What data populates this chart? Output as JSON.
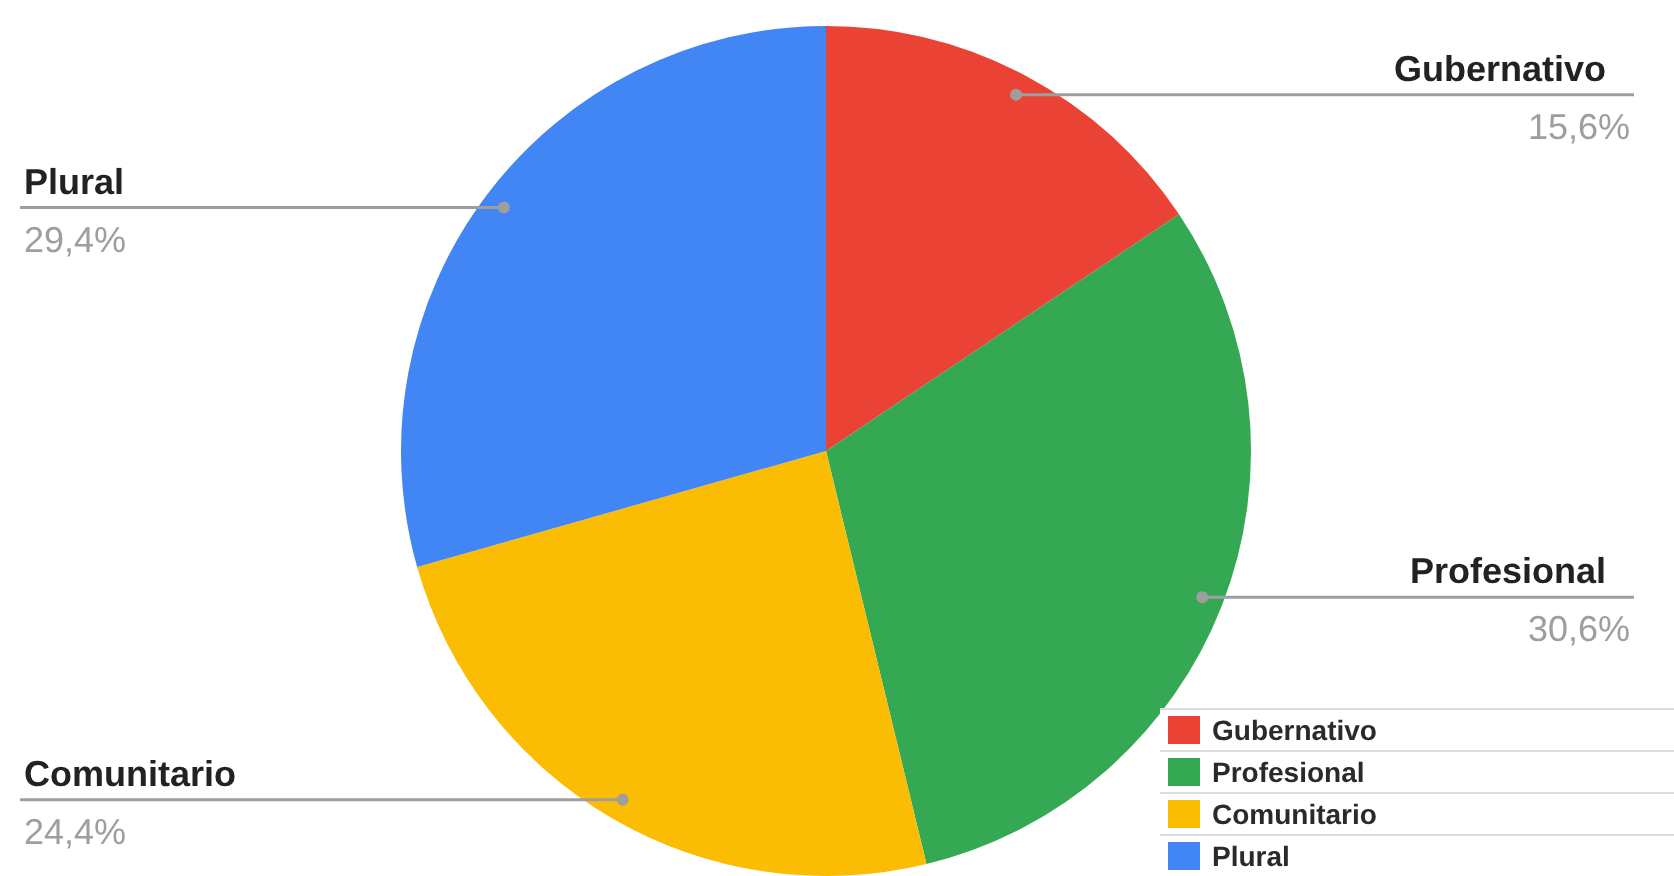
{
  "chart_data": {
    "type": "pie",
    "categories": [
      "Gubernativo",
      "Profesional",
      "Comunitario",
      "Plural"
    ],
    "values": [
      15.6,
      30.6,
      24.4,
      29.4
    ],
    "colors": [
      "#ea4335",
      "#34a853",
      "#fbbc04",
      "#4285f4"
    ],
    "value_labels": [
      "15,6%",
      "30,6%",
      "24,4%",
      "29,4%"
    ],
    "legend": "bottom right"
  }
}
